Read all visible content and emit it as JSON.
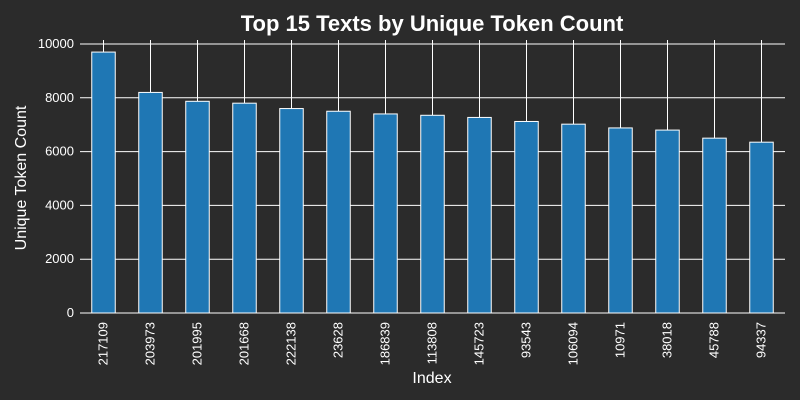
{
  "chart_data": {
    "type": "bar",
    "title": "Top 15 Texts by Unique Token Count",
    "xlabel": "Index",
    "ylabel": "Unique Token Count",
    "categories": [
      "217109",
      "203973",
      "201995",
      "201668",
      "222138",
      "23628",
      "186839",
      "113808",
      "145723",
      "93543",
      "106094",
      "10971",
      "38018",
      "45788",
      "94337"
    ],
    "values": [
      9700,
      8200,
      7870,
      7800,
      7600,
      7500,
      7400,
      7350,
      7270,
      7120,
      7020,
      6880,
      6800,
      6500,
      6350
    ],
    "ylim": [
      0,
      10000
    ],
    "yticks": [
      0,
      2000,
      4000,
      6000,
      8000,
      10000
    ],
    "grid": true,
    "bar_color": "#1f77b4",
    "background": "#2b2b2b"
  }
}
